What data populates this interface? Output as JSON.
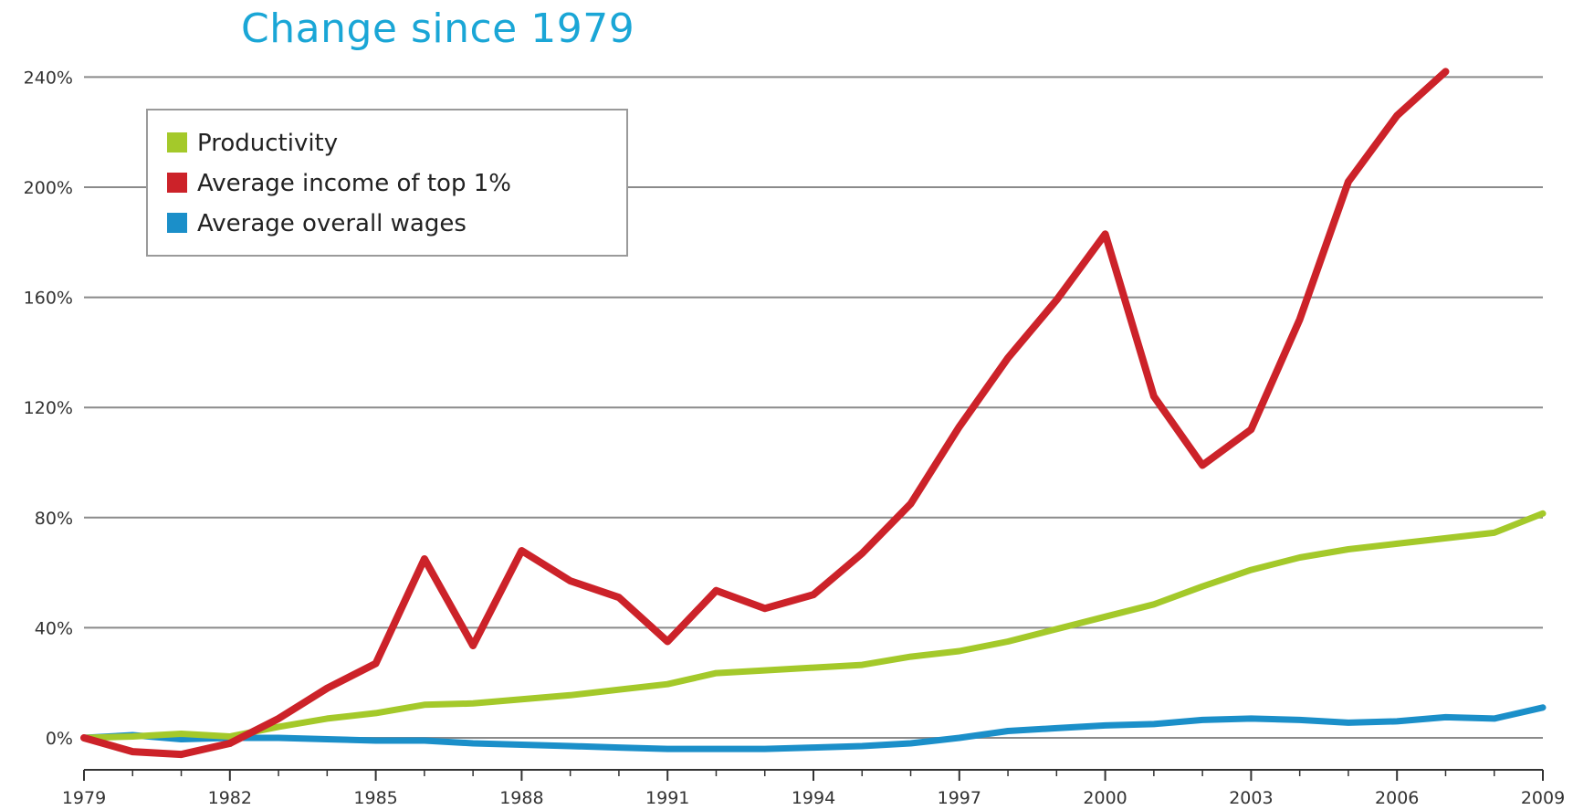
{
  "chart_data": {
    "type": "line",
    "title": "Change since 1979",
    "xlabel": "",
    "ylabel": "",
    "x": [
      1979,
      1980,
      1981,
      1982,
      1983,
      1984,
      1985,
      1986,
      1987,
      1988,
      1989,
      1990,
      1991,
      1992,
      1993,
      1994,
      1995,
      1996,
      1997,
      1998,
      1999,
      2000,
      2001,
      2002,
      2003,
      2004,
      2005,
      2006,
      2007,
      2008,
      2009
    ],
    "xlim": [
      1979,
      2009
    ],
    "ylim": [
      -8,
      250
    ],
    "x_ticks": [
      1979,
      1982,
      1985,
      1988,
      1991,
      1994,
      1997,
      2000,
      2003,
      2006,
      2009
    ],
    "x_tick_labels": [
      "1979",
      "1982",
      "1985",
      "1988",
      "1991",
      "1994",
      "1997",
      "2000",
      "2003",
      "2006",
      "2009"
    ],
    "y_ticks": [
      0,
      40,
      80,
      120,
      160,
      200,
      240
    ],
    "y_tick_labels": [
      "0%",
      "40%",
      "80%",
      "120%",
      "160%",
      "200%",
      "240%"
    ],
    "grid": "horizontal",
    "legend_position": "top-left",
    "series": [
      {
        "name": "Productivity",
        "color": "#a4c92a",
        "values": [
          0,
          0.5,
          1.5,
          0.5,
          4,
          7,
          9,
          12,
          12.5,
          14,
          15.5,
          17.5,
          19.5,
          23.5,
          24.5,
          25.5,
          26.5,
          29.5,
          31.5,
          35,
          39.5,
          44,
          48.5,
          55,
          61,
          65.5,
          68.5,
          70.5,
          72.5,
          74.5,
          81.5
        ]
      },
      {
        "name": "Average income of top 1%",
        "color": "#cc2229",
        "values": [
          0,
          -5,
          -6,
          -2,
          7,
          18,
          27,
          65,
          33.5,
          68,
          57,
          51,
          35,
          53.5,
          47,
          52,
          67,
          85,
          113,
          138,
          159,
          183,
          124,
          99,
          112,
          152,
          202,
          226,
          242,
          null,
          null
        ]
      },
      {
        "name": "Average overall wages",
        "color": "#1b8fc9",
        "values": [
          0,
          1,
          -0.5,
          0,
          0,
          -0.5,
          -1,
          -1,
          -2,
          -2.5,
          -3,
          -3.5,
          -4,
          -4,
          -4,
          -3.5,
          -3,
          -2,
          0,
          2.5,
          3.5,
          4.5,
          5,
          6.5,
          7,
          6.5,
          5.5,
          6,
          7.5,
          7,
          11
        ]
      }
    ]
  }
}
